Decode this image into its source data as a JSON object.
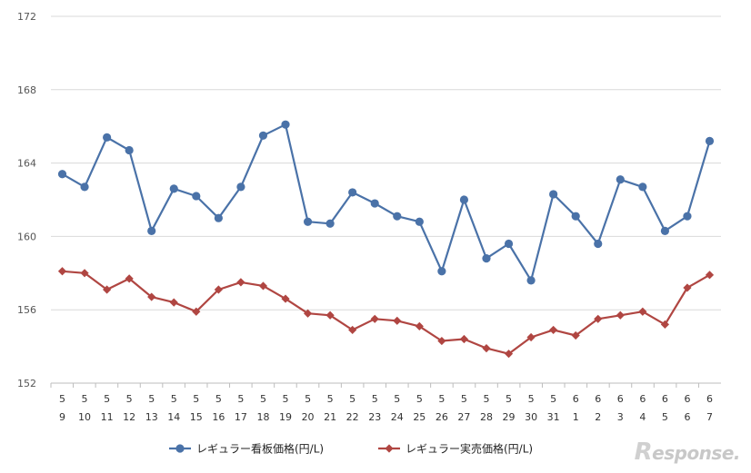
{
  "chart_data": {
    "type": "line",
    "title": "",
    "xlabel": "",
    "ylabel": "",
    "ylim": [
      152,
      172
    ],
    "yticks": [
      "152",
      "156",
      "160",
      "164",
      "168",
      "172"
    ],
    "categories": [
      {
        "month": "5",
        "day": "9"
      },
      {
        "month": "5",
        "day": "10"
      },
      {
        "month": "5",
        "day": "11"
      },
      {
        "month": "5",
        "day": "12"
      },
      {
        "month": "5",
        "day": "13"
      },
      {
        "month": "5",
        "day": "14"
      },
      {
        "month": "5",
        "day": "15"
      },
      {
        "month": "5",
        "day": "16"
      },
      {
        "month": "5",
        "day": "17"
      },
      {
        "month": "5",
        "day": "18"
      },
      {
        "month": "5",
        "day": "19"
      },
      {
        "month": "5",
        "day": "20"
      },
      {
        "month": "5",
        "day": "21"
      },
      {
        "month": "5",
        "day": "22"
      },
      {
        "month": "5",
        "day": "23"
      },
      {
        "month": "5",
        "day": "24"
      },
      {
        "month": "5",
        "day": "25"
      },
      {
        "month": "5",
        "day": "26"
      },
      {
        "month": "5",
        "day": "27"
      },
      {
        "month": "5",
        "day": "28"
      },
      {
        "month": "5",
        "day": "29"
      },
      {
        "month": "5",
        "day": "30"
      },
      {
        "month": "5",
        "day": "31"
      },
      {
        "month": "6",
        "day": "1"
      },
      {
        "month": "6",
        "day": "2"
      },
      {
        "month": "6",
        "day": "3"
      },
      {
        "month": "6",
        "day": "4"
      },
      {
        "month": "6",
        "day": "5"
      },
      {
        "month": "6",
        "day": "6"
      },
      {
        "month": "6",
        "day": "7"
      }
    ],
    "series": [
      {
        "name": "レギュラー看板価格(円/L)",
        "color": "#4a72a8",
        "marker": "circle",
        "values": [
          163.4,
          162.7,
          165.4,
          164.7,
          160.3,
          162.6,
          162.2,
          161.0,
          162.7,
          165.5,
          166.1,
          160.8,
          160.7,
          162.4,
          161.8,
          161.1,
          160.8,
          158.1,
          162.0,
          158.8,
          159.6,
          157.6,
          162.3,
          161.1,
          159.6,
          163.1,
          162.7,
          160.3,
          161.1,
          165.2
        ]
      },
      {
        "name": "レギュラー実売価格(円/L)",
        "color": "#b04642",
        "marker": "diamond",
        "values": [
          158.1,
          158.0,
          157.1,
          157.7,
          156.7,
          156.4,
          155.9,
          157.1,
          157.5,
          157.3,
          156.6,
          155.8,
          155.7,
          154.9,
          155.5,
          155.4,
          155.1,
          154.3,
          154.4,
          153.9,
          153.6,
          154.5,
          154.9,
          154.6,
          155.5,
          155.7,
          155.9,
          155.2,
          157.2,
          157.9
        ]
      }
    ],
    "legend": "bottom-center",
    "grid": true
  },
  "watermark": {
    "r": "R",
    "rest": "esponse."
  }
}
